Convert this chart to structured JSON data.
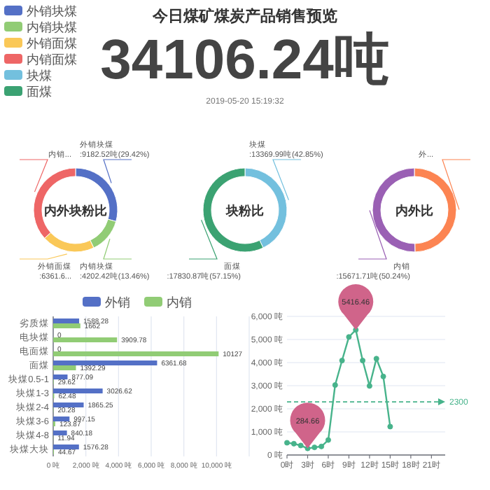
{
  "chart_data": [
    {
      "type": "other",
      "title": "今日煤矿煤炭产品销售预览",
      "annotations": [
        "34106.24吨",
        "2019-05-20 15:19:32"
      ]
    },
    {
      "type": "donut",
      "title": "内外块粉比",
      "categories": [
        "外销块煤",
        "内销块煤",
        "外销面煤",
        "内销面煤"
      ],
      "values": [
        9182.52,
        4202.42,
        6361.68,
        11469.29
      ],
      "colors": [
        "#5470c6",
        "#91cc75",
        "#fac858",
        "#ee6666"
      ],
      "value_labels": [
        "外销块煤 :9182.52吨(29.42%)",
        "内销块煤 :4202.42吨(13.46%)",
        "外销面煤 :6361.6...",
        "内销..."
      ],
      "legend": "top left"
    },
    {
      "type": "donut",
      "title": "块粉比",
      "categories": [
        "块煤",
        "面煤"
      ],
      "values": [
        13369.99,
        17830.87
      ],
      "colors": [
        "#73c0de",
        "#3ba272"
      ],
      "value_labels": [
        "块煤 :13369.99吨(42.85%)",
        "面煤 :17830.87吨(57.15%)"
      ],
      "legend": "top left"
    },
    {
      "type": "donut",
      "title": "内外比",
      "categories": [
        null,
        null
      ],
      "values": [
        15529.15,
        15671.71
      ],
      "colors": [
        "#fc8452",
        "#9a60b4"
      ],
      "value_labels": [
        "外...",
        "内销 :15671.71吨(50.24%)"
      ]
    },
    {
      "type": "bar",
      "orientation": "horizontal",
      "categories": [
        "劣质煤",
        "电块煤",
        "电面煤",
        "面煤",
        "块煤0.5-1",
        "块煤1-3",
        "块煤2-4",
        "块煤3-6",
        "块煤4-8",
        "块煤大块"
      ],
      "series": [
        {
          "name": "外销",
          "color": "#5470c6",
          "values": [
            1588.28,
            0,
            0,
            6361.68,
            877.09,
            3026.62,
            1865.25,
            997.15,
            840.18,
            1576.28
          ]
        },
        {
          "name": "内销",
          "color": "#91cc75",
          "values": [
            1662,
            3909.78,
            10127,
            1392.29,
            29.62,
            62.48,
            20.28,
            123.87,
            11.94,
            44.67
          ]
        }
      ],
      "xlim": [
        0,
        12000
      ],
      "xticks": [
        {
          "value": 0,
          "label": "0 吨"
        },
        {
          "value": 2000,
          "label": "2,000 吨"
        },
        {
          "value": 4000,
          "label": "4,000 吨"
        },
        {
          "value": 6000,
          "label": "6,000 吨"
        },
        {
          "value": 8000,
          "label": "8,000 吨"
        },
        {
          "value": 10000,
          "label": "10,000 吨"
        },
        {
          "value": 12000,
          "label": null
        }
      ],
      "grid": "x",
      "legend": "top",
      "data_labels": true
    },
    {
      "type": "line",
      "x": [
        0,
        1,
        2,
        3,
        4,
        5,
        6,
        7,
        8,
        9,
        10,
        11,
        12,
        13,
        14,
        15
      ],
      "series": [
        {
          "color": "#47b38b",
          "values": [
            530,
            490,
            410,
            284.66,
            330,
            370,
            650,
            3030,
            4090,
            5110,
            5416.46,
            4090,
            2990,
            4170,
            3400,
            1230
          ]
        }
      ],
      "xlim": [
        0,
        23
      ],
      "xticks": [
        {
          "value": 0,
          "label": "0时"
        },
        {
          "value": 3,
          "label": "3时"
        },
        {
          "value": 6,
          "label": "6时"
        },
        {
          "value": 9,
          "label": "9时"
        },
        {
          "value": 12,
          "label": "12时"
        },
        {
          "value": 15,
          "label": "15时"
        },
        {
          "value": 18,
          "label": "18时"
        },
        {
          "value": 21,
          "label": "21时"
        }
      ],
      "ylim": [
        0,
        6000
      ],
      "yticks": [
        {
          "value": 0,
          "label": "0 吨"
        },
        {
          "value": 1000,
          "label": "1,000 吨"
        },
        {
          "value": 2000,
          "label": "2,000 吨"
        },
        {
          "value": 3000,
          "label": "3,000 吨"
        },
        {
          "value": 4000,
          "label": "4,000 吨"
        },
        {
          "value": 5000,
          "label": "5,000 吨"
        },
        {
          "value": 6000,
          "label": "6,000 吨"
        }
      ],
      "grid": "y",
      "marker": "circle",
      "line_style": "solid",
      "ref_lines": [
        {
          "axis": "y",
          "value": 2300,
          "label": "2300",
          "line_style": "dashed",
          "color": "#47b38b"
        }
      ],
      "annotations": [
        {
          "text": "5416.46",
          "x": 10,
          "y": 5416.46
        },
        {
          "text": "284.66",
          "x": 3,
          "y": 284.66
        }
      ]
    }
  ]
}
